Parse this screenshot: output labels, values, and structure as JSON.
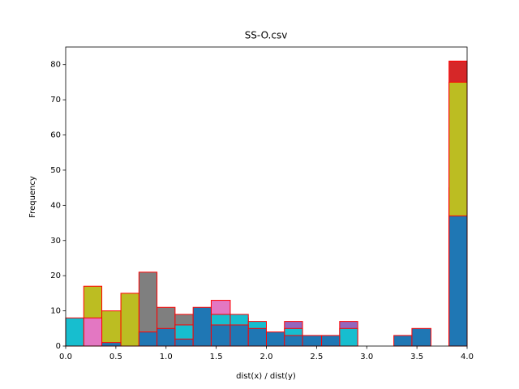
{
  "chart_data": {
    "type": "histogram",
    "title": "SS-O.csv",
    "x_label": "dist(x) / dist(y)",
    "y_label": "Frequency",
    "edgecolor": "#ff0000",
    "bins": [
      0,
      0.18,
      0.36,
      0.55,
      0.73,
      0.91,
      1.09,
      1.27,
      1.45,
      1.64,
      1.82,
      2.0,
      2.18,
      2.36,
      2.55,
      2.73,
      2.91,
      3.09,
      3.27,
      3.45,
      3.64,
      3.82,
      4.0
    ],
    "series": [
      {
        "color": "#d62728",
        "values": [
          5,
          0,
          0,
          0,
          0,
          0,
          0,
          0,
          0,
          0,
          0,
          0,
          0,
          0,
          0,
          0,
          0,
          0,
          0,
          0,
          0,
          81
        ]
      },
      {
        "color": "#9467bd",
        "values": [
          0,
          0,
          0,
          0,
          0,
          0,
          0,
          0,
          0,
          0,
          0,
          0,
          7,
          0,
          0,
          7,
          0,
          0,
          0,
          0,
          0,
          45
        ]
      },
      {
        "color": "#7f7f7f",
        "values": [
          0,
          0,
          0,
          0,
          21,
          11,
          9,
          0,
          0,
          0,
          0,
          0,
          0,
          0,
          0,
          0,
          0,
          0,
          0,
          0,
          0,
          0
        ]
      },
      {
        "color": "#bcbd22",
        "values": [
          0,
          17,
          10,
          15,
          0,
          0,
          0,
          0,
          0,
          0,
          0,
          0,
          0,
          0,
          0,
          0,
          0,
          0,
          0,
          0,
          0,
          75
        ]
      },
      {
        "color": "#e377c2",
        "values": [
          0,
          8,
          0,
          0,
          0,
          0,
          0,
          0,
          13,
          8,
          0,
          0,
          0,
          0,
          0,
          0,
          0,
          0,
          0,
          0,
          0,
          0
        ]
      },
      {
        "color": "#17becf",
        "values": [
          8,
          0,
          0,
          0,
          0,
          0,
          6,
          0,
          9,
          9,
          7,
          0,
          5,
          0,
          0,
          5,
          0,
          0,
          0,
          0,
          0,
          0
        ]
      },
      {
        "color": "#1f77b4",
        "values": [
          0,
          0,
          1,
          0,
          4,
          5,
          2,
          11,
          6,
          6,
          5,
          4,
          3,
          3,
          3,
          0,
          0,
          0,
          3,
          5,
          0,
          37
        ]
      }
    ],
    "xlim": [
      0,
      4
    ],
    "ylim": [
      0,
      85
    ],
    "xticks": [
      {
        "value": 0,
        "label": "0.0"
      },
      {
        "value": 0.5,
        "label": "0.5"
      },
      {
        "value": 1,
        "label": "1.0"
      },
      {
        "value": 1.5,
        "label": "1.5"
      },
      {
        "value": 2,
        "label": "2.0"
      },
      {
        "value": 2.5,
        "label": "2.5"
      },
      {
        "value": 3,
        "label": "3.0"
      },
      {
        "value": 3.5,
        "label": "3.5"
      },
      {
        "value": 4,
        "label": "4.0"
      }
    ],
    "yticks": [
      0,
      10,
      20,
      30,
      40,
      50,
      60,
      70,
      80
    ]
  }
}
